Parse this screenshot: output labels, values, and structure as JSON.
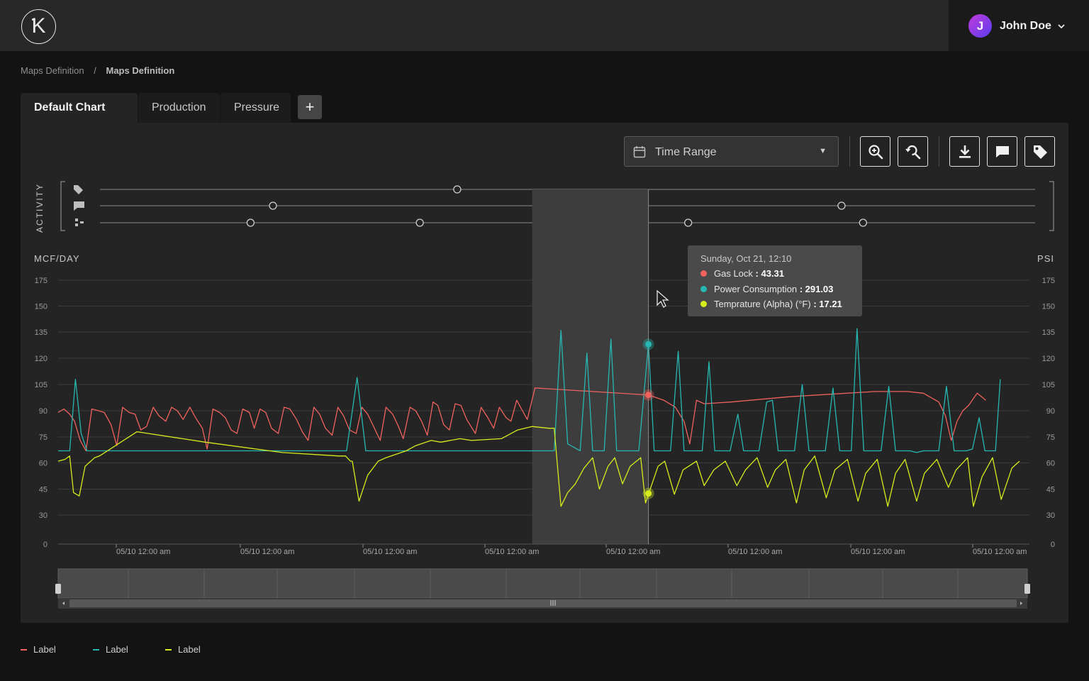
{
  "header": {
    "logo_letter": "K",
    "user": {
      "initial": "J",
      "name": "John Doe"
    }
  },
  "breadcrumb": {
    "items": [
      "Maps Definition",
      "Maps Definition"
    ],
    "separator": "/"
  },
  "tabs": [
    {
      "label": "Default Chart",
      "active": true
    },
    {
      "label": "Production",
      "active": false
    },
    {
      "label": "Pressure",
      "active": false
    }
  ],
  "add_tab_label": "+",
  "toolbar": {
    "time_range_label": "Time Range",
    "icons": [
      "zoom-in-icon",
      "zoom-reset-icon",
      "download-icon",
      "comment-icon",
      "tag-icon"
    ]
  },
  "activity": {
    "label": "ACTIVITY",
    "rows": [
      {
        "icon": "tag-icon",
        "markers": [
          0.382
        ]
      },
      {
        "icon": "comment-icon",
        "markers": [
          0.185,
          0.529,
          0.793
        ]
      },
      {
        "icon": "hierarchy-icon",
        "markers": [
          0.161,
          0.342,
          0.629,
          0.816
        ]
      }
    ]
  },
  "tooltip": {
    "date": "Sunday, Oct 21, 12:10",
    "rows": [
      {
        "name": "Gas Lock",
        "value": ": 43.31",
        "color": "#f0625e"
      },
      {
        "name": "Power Consumption",
        "value": ": 291.03",
        "color": "#27b7b2"
      },
      {
        "name": "Temprature (Alpha) (°F)",
        "value": ": 17.21",
        "color": "#d6ec1c"
      }
    ]
  },
  "legend": [
    {
      "label": "Label",
      "color": "#f0625e"
    },
    {
      "label": "Label",
      "color": "#27b7b2"
    },
    {
      "label": "Label",
      "color": "#d6ec1c"
    }
  ],
  "chart_data": {
    "type": "line",
    "ylabel": "MCF/DAY",
    "y2label": "PSI",
    "yticks": [
      0,
      30,
      45,
      60,
      75,
      90,
      105,
      120,
      135,
      150,
      175
    ],
    "xticks": [
      "05/10 12:00 am",
      "05/10 12:00 am",
      "05/10 12:00 am",
      "05/10 12:00 am",
      "05/10 12:00 am",
      "05/10 12:00 am",
      "05/10 12:00 am",
      "05/10 12:00 am"
    ],
    "selection": {
      "start": 0.493,
      "end": 0.614
    },
    "crosshair": 0.614,
    "colors": {
      "red": "#f0625e",
      "teal": "#27b7b2",
      "yellow": "#d6ec1c"
    },
    "series": [
      {
        "color": "#f0625e",
        "points": [
          [
            0.0,
            89
          ],
          [
            0.006,
            91
          ],
          [
            0.012,
            88
          ],
          [
            0.017,
            84
          ],
          [
            0.023,
            73
          ],
          [
            0.029,
            67
          ],
          [
            0.035,
            91
          ],
          [
            0.042,
            90
          ],
          [
            0.048,
            89
          ],
          [
            0.055,
            82
          ],
          [
            0.061,
            70
          ],
          [
            0.067,
            92
          ],
          [
            0.074,
            89
          ],
          [
            0.08,
            88
          ],
          [
            0.086,
            79
          ],
          [
            0.092,
            81
          ],
          [
            0.099,
            92
          ],
          [
            0.105,
            87
          ],
          [
            0.112,
            84
          ],
          [
            0.118,
            92
          ],
          [
            0.124,
            90
          ],
          [
            0.13,
            85
          ],
          [
            0.137,
            92
          ],
          [
            0.143,
            86
          ],
          [
            0.15,
            80
          ],
          [
            0.155,
            68
          ],
          [
            0.161,
            91
          ],
          [
            0.168,
            89
          ],
          [
            0.174,
            86
          ],
          [
            0.18,
            79
          ],
          [
            0.186,
            77
          ],
          [
            0.192,
            91
          ],
          [
            0.199,
            89
          ],
          [
            0.204,
            80
          ],
          [
            0.21,
            91
          ],
          [
            0.216,
            89
          ],
          [
            0.222,
            80
          ],
          [
            0.229,
            77
          ],
          [
            0.235,
            92
          ],
          [
            0.241,
            91
          ],
          [
            0.248,
            85
          ],
          [
            0.254,
            78
          ],
          [
            0.26,
            73
          ],
          [
            0.266,
            92
          ],
          [
            0.272,
            88
          ],
          [
            0.278,
            80
          ],
          [
            0.285,
            76
          ],
          [
            0.291,
            92
          ],
          [
            0.297,
            87
          ],
          [
            0.303,
            79
          ],
          [
            0.31,
            77
          ],
          [
            0.316,
            92
          ],
          [
            0.322,
            88
          ],
          [
            0.329,
            80
          ],
          [
            0.335,
            73
          ],
          [
            0.341,
            92
          ],
          [
            0.348,
            88
          ],
          [
            0.354,
            81
          ],
          [
            0.359,
            74
          ],
          [
            0.366,
            92
          ],
          [
            0.372,
            90
          ],
          [
            0.378,
            84
          ],
          [
            0.384,
            76
          ],
          [
            0.39,
            95
          ],
          [
            0.395,
            93
          ],
          [
            0.401,
            82
          ],
          [
            0.407,
            79
          ],
          [
            0.413,
            94
          ],
          [
            0.419,
            93
          ],
          [
            0.425,
            85
          ],
          [
            0.434,
            77
          ],
          [
            0.44,
            92
          ],
          [
            0.447,
            86
          ],
          [
            0.453,
            80
          ],
          [
            0.459,
            92
          ],
          [
            0.466,
            86
          ],
          [
            0.471,
            84
          ],
          [
            0.477,
            96
          ],
          [
            0.483,
            90
          ],
          [
            0.488,
            85
          ],
          [
            0.496,
            103
          ],
          [
            0.614,
            99
          ],
          [
            0.63,
            96
          ],
          [
            0.642,
            92
          ],
          [
            0.651,
            84
          ],
          [
            0.657,
            71
          ],
          [
            0.664,
            96
          ],
          [
            0.672,
            94
          ],
          [
            0.7,
            95
          ],
          [
            0.76,
            98
          ],
          [
            0.85,
            101
          ],
          [
            0.883,
            101
          ],
          [
            0.9,
            100
          ],
          [
            0.916,
            95
          ],
          [
            0.923,
            87
          ],
          [
            0.929,
            73
          ],
          [
            0.935,
            84
          ],
          [
            0.941,
            90
          ],
          [
            0.947,
            93
          ],
          [
            0.956,
            100
          ],
          [
            0.965,
            96
          ]
        ]
      },
      {
        "color": "#27b7b2",
        "points": [
          [
            0.0,
            67
          ],
          [
            0.012,
            67
          ],
          [
            0.018,
            108
          ],
          [
            0.024,
            77
          ],
          [
            0.03,
            67
          ],
          [
            0.3,
            67
          ],
          [
            0.311,
            109
          ],
          [
            0.32,
            67
          ],
          [
            0.516,
            67
          ],
          [
            0.523,
            136
          ],
          [
            0.53,
            71
          ],
          [
            0.543,
            67
          ],
          [
            0.55,
            123
          ],
          [
            0.556,
            67
          ],
          [
            0.568,
            67
          ],
          [
            0.575,
            131
          ],
          [
            0.581,
            67
          ],
          [
            0.596,
            67
          ],
          [
            0.604,
            67
          ],
          [
            0.614,
            128
          ],
          [
            0.62,
            67
          ],
          [
            0.637,
            67
          ],
          [
            0.645,
            124
          ],
          [
            0.651,
            67
          ],
          [
            0.67,
            67
          ],
          [
            0.677,
            118
          ],
          [
            0.683,
            67
          ],
          [
            0.699,
            67
          ],
          [
            0.707,
            88
          ],
          [
            0.713,
            67
          ],
          [
            0.729,
            67
          ],
          [
            0.737,
            95
          ],
          [
            0.743,
            96
          ],
          [
            0.749,
            67
          ],
          [
            0.766,
            67
          ],
          [
            0.774,
            105
          ],
          [
            0.781,
            67
          ],
          [
            0.798,
            67
          ],
          [
            0.806,
            103
          ],
          [
            0.813,
            67
          ],
          [
            0.825,
            67
          ],
          [
            0.831,
            137
          ],
          [
            0.838,
            67
          ],
          [
            0.849,
            67
          ],
          [
            0.856,
            67
          ],
          [
            0.864,
            104
          ],
          [
            0.871,
            67
          ],
          [
            0.886,
            67
          ],
          [
            0.893,
            66
          ],
          [
            0.9,
            67
          ],
          [
            0.909,
            67
          ],
          [
            0.916,
            67
          ],
          [
            0.924,
            104
          ],
          [
            0.932,
            67
          ],
          [
            0.945,
            67
          ],
          [
            0.951,
            68
          ],
          [
            0.958,
            86
          ],
          [
            0.964,
            67
          ],
          [
            0.975,
            67
          ],
          [
            0.98,
            108
          ]
        ]
      },
      {
        "color": "#d6ec1c",
        "points": [
          [
            0.0,
            61
          ],
          [
            0.007,
            62
          ],
          [
            0.012,
            64
          ],
          [
            0.016,
            43
          ],
          [
            0.022,
            41
          ],
          [
            0.028,
            58
          ],
          [
            0.038,
            63
          ],
          [
            0.043,
            64
          ],
          [
            0.082,
            78
          ],
          [
            0.153,
            72
          ],
          [
            0.233,
            66
          ],
          [
            0.292,
            64
          ],
          [
            0.299,
            64
          ],
          [
            0.304,
            61
          ],
          [
            0.306,
            61
          ],
          [
            0.313,
            38
          ],
          [
            0.322,
            53
          ],
          [
            0.333,
            61
          ],
          [
            0.341,
            63
          ],
          [
            0.362,
            67
          ],
          [
            0.372,
            70
          ],
          [
            0.388,
            73
          ],
          [
            0.398,
            72
          ],
          [
            0.418,
            74
          ],
          [
            0.43,
            73
          ],
          [
            0.461,
            74
          ],
          [
            0.478,
            79
          ],
          [
            0.493,
            81
          ],
          [
            0.51,
            80
          ],
          [
            0.516,
            80
          ],
          [
            0.523,
            35
          ],
          [
            0.53,
            43
          ],
          [
            0.538,
            48
          ],
          [
            0.547,
            57
          ],
          [
            0.556,
            63
          ],
          [
            0.563,
            45
          ],
          [
            0.572,
            58
          ],
          [
            0.579,
            63
          ],
          [
            0.587,
            48
          ],
          [
            0.595,
            58
          ],
          [
            0.606,
            63
          ],
          [
            0.611,
            37
          ],
          [
            0.614,
            42
          ],
          [
            0.624,
            58
          ],
          [
            0.631,
            61
          ],
          [
            0.641,
            42
          ],
          [
            0.65,
            56
          ],
          [
            0.664,
            61
          ],
          [
            0.672,
            47
          ],
          [
            0.682,
            56
          ],
          [
            0.694,
            61
          ],
          [
            0.706,
            47
          ],
          [
            0.715,
            56
          ],
          [
            0.727,
            63
          ],
          [
            0.738,
            46
          ],
          [
            0.746,
            56
          ],
          [
            0.757,
            62
          ],
          [
            0.768,
            37
          ],
          [
            0.776,
            56
          ],
          [
            0.787,
            64
          ],
          [
            0.799,
            40
          ],
          [
            0.808,
            56
          ],
          [
            0.821,
            62
          ],
          [
            0.832,
            38
          ],
          [
            0.84,
            54
          ],
          [
            0.852,
            62
          ],
          [
            0.863,
            35
          ],
          [
            0.871,
            54
          ],
          [
            0.881,
            62
          ],
          [
            0.893,
            38
          ],
          [
            0.901,
            54
          ],
          [
            0.914,
            62
          ],
          [
            0.926,
            46
          ],
          [
            0.934,
            56
          ],
          [
            0.946,
            63
          ],
          [
            0.952,
            35
          ],
          [
            0.961,
            52
          ],
          [
            0.972,
            63
          ],
          [
            0.981,
            39
          ],
          [
            0.992,
            57
          ],
          [
            1.0,
            61
          ]
        ]
      }
    ]
  }
}
